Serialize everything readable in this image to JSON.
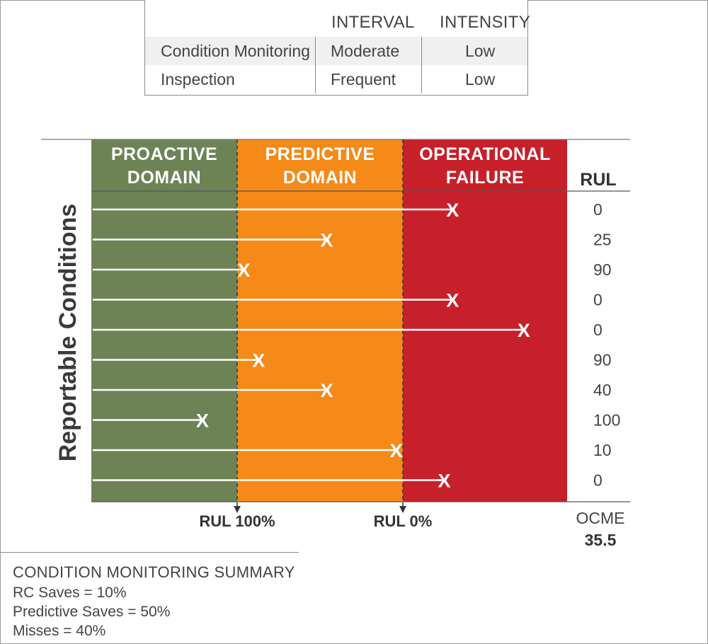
{
  "top_table": {
    "col_interval": "INTERVAL",
    "col_intensity": "INTENSITY",
    "rows": [
      {
        "label": "Condition Monitoring",
        "interval": "Moderate",
        "intensity": "Low"
      },
      {
        "label": "Inspection",
        "interval": "Frequent",
        "intensity": "Low"
      }
    ]
  },
  "chart_data": {
    "type": "scatter",
    "ylabel": "Reportable Conditions",
    "domains": [
      {
        "line1": "PROACTIVE",
        "line2": "DOMAIN",
        "color": "#6d8356"
      },
      {
        "line1": "PREDICTIVE",
        "line2": "DOMAIN",
        "color": "#f58a18"
      },
      {
        "line1": "OPERATIONAL",
        "line2": "FAILURE",
        "color": "#c8202a"
      }
    ],
    "x_scale_note": "",
    "rul_header": "RUL",
    "rul_values": [
      "0",
      "25",
      "90",
      "0",
      "0",
      "90",
      "40",
      "100",
      "10",
      "0"
    ],
    "x_positions": [
      1.3,
      0.54,
      0.04,
      1.3,
      1.73,
      0.13,
      0.54,
      -0.21,
      0.96,
      1.25
    ],
    "marker": "X",
    "markers": [
      {
        "label": "RUL 100%",
        "at": 0
      },
      {
        "label": "RUL 0%",
        "at": 1
      }
    ],
    "ocme_label": "OCME",
    "ocme_value": "35.5"
  },
  "summary": {
    "title": "CONDITION MONITORING SUMMARY",
    "lines": [
      "RC Saves = 10%",
      "Predictive Saves = 50%",
      "Misses = 40%"
    ]
  }
}
